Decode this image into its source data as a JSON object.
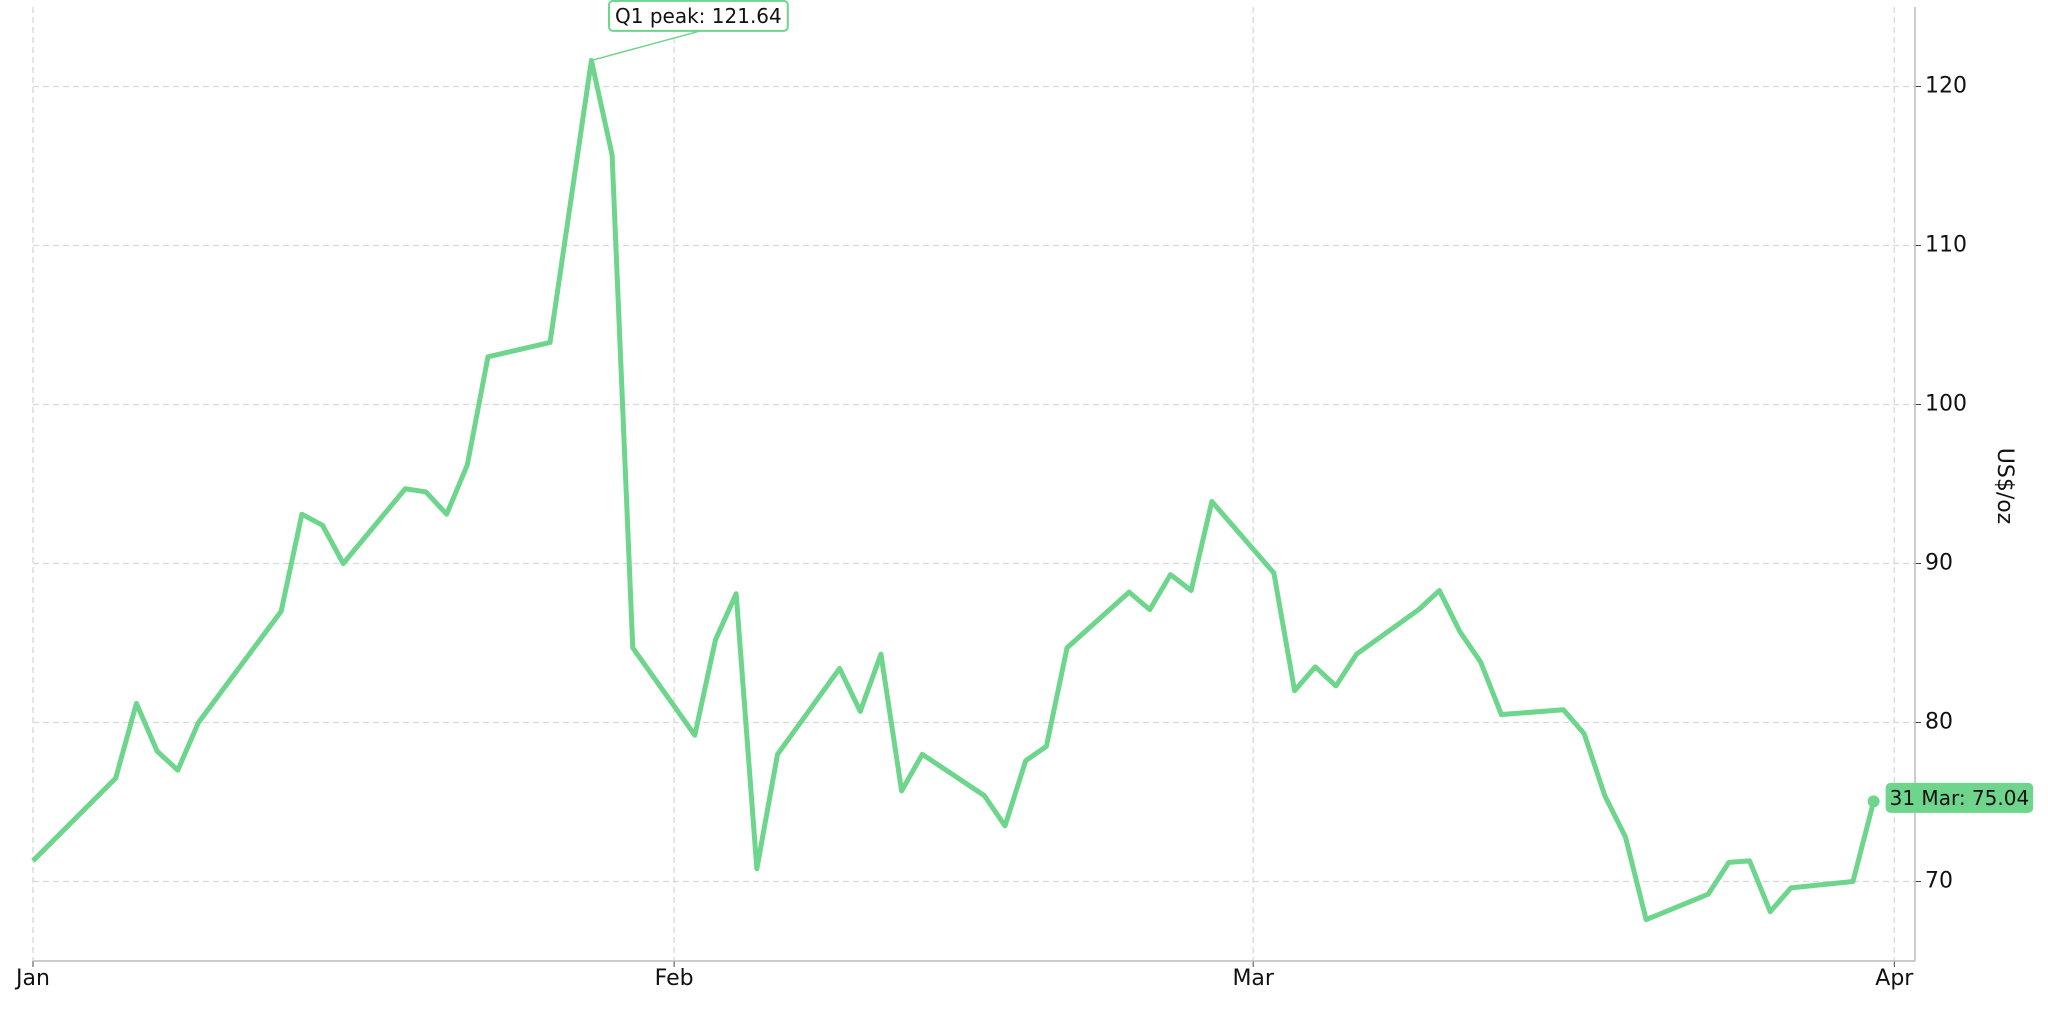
{
  "chart_data": {
    "type": "line",
    "y_label": "US$/oz",
    "x": [
      "1 Jan",
      "5 Jan",
      "6 Jan",
      "7 Jan",
      "8 Jan",
      "9 Jan",
      "13 Jan",
      "14 Jan",
      "15 Jan",
      "16 Jan",
      "19 Jan",
      "20 Jan",
      "21 Jan",
      "22 Jan",
      "23 Jan",
      "26 Jan",
      "28 Jan",
      "29 Jan",
      "30 Jan",
      "2 Feb",
      "3 Feb",
      "4 Feb",
      "5 Feb",
      "6 Feb",
      "9 Feb",
      "10 Feb",
      "11 Feb",
      "12 Feb",
      "13 Feb",
      "16 Feb",
      "17 Feb",
      "18 Feb",
      "19 Feb",
      "20 Feb",
      "23 Feb",
      "24 Feb",
      "25 Feb",
      "26 Feb",
      "27 Feb",
      "2 Mar",
      "3 Mar",
      "4 Mar",
      "5 Mar",
      "6 Mar",
      "9 Mar",
      "10 Mar",
      "11 Mar",
      "12 Mar",
      "13 Mar",
      "16 Mar",
      "17 Mar",
      "18 Mar",
      "19 Mar",
      "20 Mar",
      "23 Mar",
      "24 Mar",
      "25 Mar",
      "26 Mar",
      "27 Mar",
      "30 Mar",
      "31 Mar"
    ],
    "values": [
      71.3,
      76.5,
      81.2,
      78.2,
      77.0,
      80.0,
      87.0,
      93.1,
      92.4,
      90.0,
      94.7,
      94.5,
      93.1,
      96.2,
      103.0,
      103.9,
      121.64,
      115.7,
      84.7,
      79.2,
      85.2,
      88.1,
      70.8,
      78.0,
      83.4,
      80.7,
      84.3,
      75.7,
      78.0,
      75.4,
      73.5,
      77.6,
      78.5,
      84.7,
      88.2,
      87.1,
      89.3,
      88.3,
      93.9,
      89.4,
      82.0,
      83.5,
      82.3,
      84.3,
      87.1,
      88.3,
      85.7,
      83.8,
      80.5,
      80.8,
      79.3,
      75.4,
      72.8,
      67.6,
      69.2,
      71.2,
      71.3,
      68.1,
      69.6,
      70.0,
      75.04
    ],
    "color": "#6dd58c",
    "peak_label": "Q1 peak: 121.64",
    "last_label": "31 Mar: 75.04",
    "xlim": [
      "1 Jan",
      "2 Apr"
    ],
    "xticks": [
      {
        "value": "1 Jan",
        "label": "Jan"
      },
      {
        "value": "1 Feb",
        "label": "Feb"
      },
      {
        "value": "1 Mar",
        "label": "Mar"
      },
      {
        "value": "1 Apr",
        "label": "Apr"
      }
    ],
    "ylim": [
      65,
      125
    ],
    "yticks": [
      70,
      80,
      90,
      100,
      110,
      120
    ],
    "y_axis_side": "right",
    "grid": true
  }
}
